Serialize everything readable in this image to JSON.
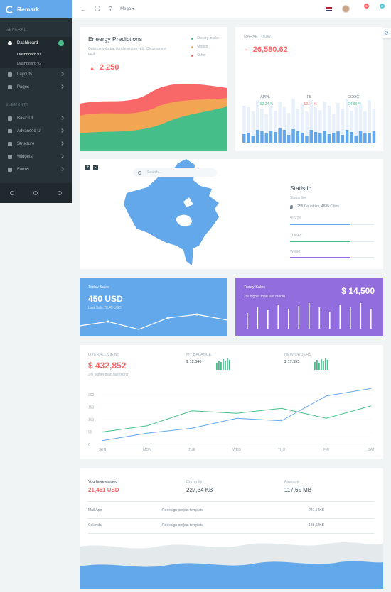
{
  "brand": {
    "name": "Remark"
  },
  "sidebar": {
    "category_general": "GENERAL",
    "category_elements": "ELEMENTS",
    "dashboard": {
      "label": "Dashboard"
    },
    "dashboard_sub": [
      {
        "label": "Dashboard v1"
      },
      {
        "label": "Dashboard v2"
      }
    ],
    "layouts": {
      "label": "Layouts"
    },
    "pages": {
      "label": "Pages"
    },
    "basic_ui": {
      "label": "Basic UI"
    },
    "advanced_ui": {
      "label": "Advanced UI"
    },
    "structure": {
      "label": "Structure"
    },
    "widgets": {
      "label": "Widgets"
    },
    "forms": {
      "label": "Forms"
    }
  },
  "topbar": {
    "mega_label": "Mega",
    "notifications_count": "5",
    "messages_count": "3"
  },
  "energy": {
    "title": "Eneergy Predictions",
    "description": "Quisque volutpat condimentum velit. Class aptent taciti",
    "value": "2,250",
    "legend": [
      {
        "label": "Dietary intake",
        "color": "#46be8a"
      },
      {
        "label": "Motion",
        "color": "#f2a654"
      },
      {
        "label": "Other",
        "color": "#f96868"
      }
    ]
  },
  "market": {
    "label": "MARKET DOW",
    "value": "26,580.62",
    "columns": [
      {
        "name": "APPL",
        "change": "+ 82.24 %"
      },
      {
        "name": "FB",
        "change": "- 12.06 %"
      },
      {
        "name": "GOOG",
        "change": "+ 24.86 %"
      }
    ]
  },
  "statistic": {
    "search_placeholder": "Search...",
    "title": "Statistic",
    "status": "Status live",
    "locations": "258 Countries, 4835 Cities",
    "bars": [
      {
        "label": "VISITS",
        "fill": 0.72,
        "color": "#62a8ea"
      },
      {
        "label": "TODAY",
        "fill": 0.72,
        "color": "#46be8a"
      },
      {
        "label": "WEEK",
        "fill": 0.72,
        "color": "#926dde"
      }
    ]
  },
  "sales_blue": {
    "label": "Today Sales",
    "value": "450 USD",
    "subtext": "Last Sale 23.45 USD"
  },
  "sales_purple": {
    "label": "Today Sales",
    "value": "$ 14,500",
    "subtext": "2% higher than last month"
  },
  "overall": {
    "label": "OVERALL VIEWS",
    "value": "$ 432,852",
    "subtext": "2% higher than last month",
    "balance_label": "MY BALANCE",
    "balance_value": "$ 12,346",
    "orders_label": "NEW ORDERS",
    "orders_value": "$ 17,555"
  },
  "chart_data": {
    "type": "line",
    "categories": [
      "SUN",
      "MON",
      "TUE",
      "WED",
      "THU",
      "FRI",
      "SAT"
    ],
    "yticks": [
      "0",
      "50",
      "100",
      "150",
      "200"
    ],
    "ylim": [
      0,
      200
    ],
    "series": [
      {
        "color": "#46be8a",
        "values": [
          50,
          75,
          135,
          125,
          145,
          105,
          155
        ]
      },
      {
        "color": "#62a8ea",
        "values": [
          15,
          45,
          65,
          105,
          95,
          195,
          225
        ]
      }
    ]
  },
  "earned": {
    "saved_label": "You have earned",
    "saved_value": "21,451 USD",
    "current_label": "Currently",
    "current_value": "227,34 KB",
    "average_label": "Average",
    "average_value": "117,65 MB",
    "rows": [
      {
        "name": "Mail App",
        "desc": "Redesign project template",
        "size": "227,54KB"
      },
      {
        "name": "Calendar",
        "desc": "Redesign project template",
        "size": "128,62KB"
      }
    ]
  }
}
